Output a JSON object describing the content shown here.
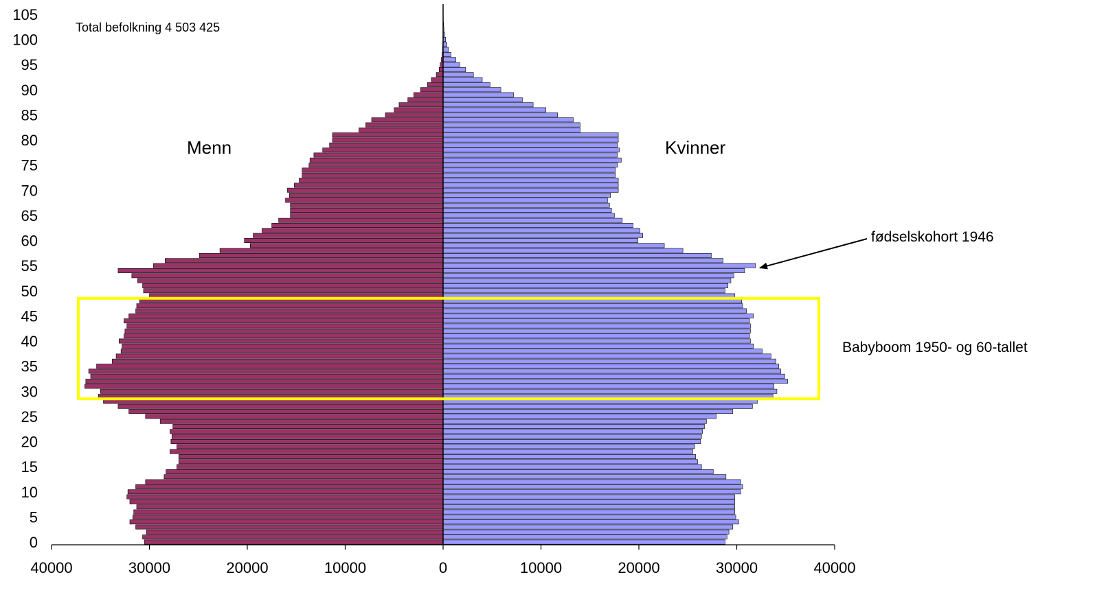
{
  "chart_data": {
    "type": "bar",
    "orientation": "horizontal-population-pyramid",
    "title": "",
    "subtitle": "Total befolkning 4 503 425",
    "xlabel": "",
    "ylabel": "",
    "xlim": [
      -40000,
      40000
    ],
    "ylim": [
      0,
      105
    ],
    "x_ticks": [
      -40000,
      -30000,
      -20000,
      -10000,
      0,
      10000,
      20000,
      30000,
      40000
    ],
    "x_tick_labels": [
      "40000",
      "30000",
      "20000",
      "10000",
      "0",
      "10000",
      "20000",
      "30000",
      "40000"
    ],
    "y_ticks": [
      0,
      5,
      10,
      15,
      20,
      25,
      30,
      35,
      40,
      45,
      50,
      55,
      60,
      65,
      70,
      75,
      80,
      85,
      90,
      95,
      100,
      105
    ],
    "y_tick_labels": [
      "0",
      "5",
      "10",
      "15",
      "20",
      "25",
      "30",
      "35",
      "40",
      "45",
      "50",
      "55",
      "60",
      "65",
      "70",
      "75",
      "80",
      "85",
      "90",
      "95",
      "100",
      "105"
    ],
    "series": [
      {
        "name": "Menn",
        "color": "#993366",
        "ages": [
          0,
          1,
          2,
          3,
          4,
          5,
          6,
          7,
          8,
          9,
          10,
          11,
          12,
          13,
          14,
          15,
          16,
          17,
          18,
          19,
          20,
          21,
          22,
          23,
          24,
          25,
          26,
          27,
          28,
          29,
          30,
          31,
          32,
          33,
          34,
          35,
          36,
          37,
          38,
          39,
          40,
          41,
          42,
          43,
          44,
          45,
          46,
          47,
          48,
          49,
          50,
          51,
          52,
          53,
          54,
          55,
          56,
          57,
          58,
          59,
          60,
          61,
          62,
          63,
          64,
          65,
          66,
          67,
          68,
          69,
          70,
          71,
          72,
          73,
          74,
          75,
          76,
          77,
          78,
          79,
          80,
          81,
          82,
          83,
          84,
          85,
          86,
          87,
          88,
          89,
          90,
          91,
          92,
          93,
          94,
          95,
          96,
          97,
          98,
          99,
          100,
          101,
          102,
          103,
          104,
          105
        ],
        "values": [
          30500,
          30700,
          30300,
          31400,
          32000,
          31700,
          31600,
          31300,
          32000,
          32300,
          32200,
          31400,
          30400,
          28500,
          28300,
          27200,
          27000,
          27000,
          27900,
          27200,
          27800,
          27700,
          27900,
          27600,
          28900,
          30400,
          32100,
          33200,
          34700,
          35200,
          35000,
          36600,
          36500,
          36000,
          36200,
          35400,
          33800,
          33400,
          32900,
          32800,
          33100,
          32600,
          32500,
          32300,
          32600,
          32100,
          31400,
          31300,
          31000,
          30000,
          30600,
          30700,
          31200,
          31800,
          33200,
          29600,
          28400,
          24900,
          22800,
          19700,
          20300,
          19400,
          18500,
          17500,
          16800,
          15600,
          15600,
          15600,
          16100,
          15700,
          15900,
          15200,
          14700,
          14400,
          14400,
          13700,
          13600,
          13200,
          12300,
          11600,
          11300,
          11300,
          8600,
          7900,
          7300,
          5900,
          5000,
          4500,
          3600,
          3000,
          2300,
          1600,
          1200,
          700,
          400,
          300,
          180,
          100,
          60,
          40,
          20,
          12,
          6,
          4,
          2,
          1
        ]
      },
      {
        "name": "Kvinner",
        "color": "#9999ff",
        "ages": [
          0,
          1,
          2,
          3,
          4,
          5,
          6,
          7,
          8,
          9,
          10,
          11,
          12,
          13,
          14,
          15,
          16,
          17,
          18,
          19,
          20,
          21,
          22,
          23,
          24,
          25,
          26,
          27,
          28,
          29,
          30,
          31,
          32,
          33,
          34,
          35,
          36,
          37,
          38,
          39,
          40,
          41,
          42,
          43,
          44,
          45,
          46,
          47,
          48,
          49,
          50,
          51,
          52,
          53,
          54,
          55,
          56,
          57,
          58,
          59,
          60,
          61,
          62,
          63,
          64,
          65,
          66,
          67,
          68,
          69,
          70,
          71,
          72,
          73,
          74,
          75,
          76,
          77,
          78,
          79,
          80,
          81,
          82,
          83,
          84,
          85,
          86,
          87,
          88,
          89,
          90,
          91,
          92,
          93,
          94,
          95,
          96,
          97,
          98,
          99,
          100,
          101,
          102,
          103,
          104,
          105
        ],
        "values": [
          28800,
          29000,
          29200,
          29600,
          30200,
          29900,
          29800,
          29800,
          29800,
          29800,
          30400,
          30600,
          30400,
          28900,
          27600,
          26400,
          26000,
          25800,
          25500,
          25700,
          26300,
          26400,
          26500,
          26700,
          26900,
          27900,
          29600,
          31600,
          32100,
          33700,
          34100,
          33800,
          35200,
          34900,
          34500,
          34300,
          34000,
          33500,
          32600,
          31700,
          31400,
          31300,
          31400,
          31400,
          31300,
          31700,
          31000,
          30600,
          30500,
          29800,
          28800,
          29100,
          29400,
          29700,
          30800,
          31900,
          28600,
          27400,
          24500,
          22600,
          19900,
          20400,
          20100,
          19400,
          18300,
          17500,
          17200,
          17000,
          16800,
          17100,
          17900,
          17900,
          17900,
          17600,
          17600,
          17800,
          18200,
          17800,
          18000,
          17800,
          17900,
          17900,
          14000,
          14000,
          13300,
          11700,
          10500,
          9200,
          8100,
          7200,
          5900,
          4800,
          4000,
          3100,
          2300,
          1700,
          1300,
          800,
          550,
          400,
          260,
          150,
          90,
          50,
          20,
          8
        ]
      }
    ],
    "annotations": {
      "total": "Total befolkning 4 503 425",
      "men_label": "Menn",
      "women_label": "Kvinner",
      "cohort_label": "fødselskohort 1946",
      "cohort_age": 54,
      "babyboom_label": "Babyboom 1950- og 60-tallet",
      "babyboom_ages": [
        28.5,
        48.5
      ]
    },
    "grid": false,
    "legend": "none"
  }
}
